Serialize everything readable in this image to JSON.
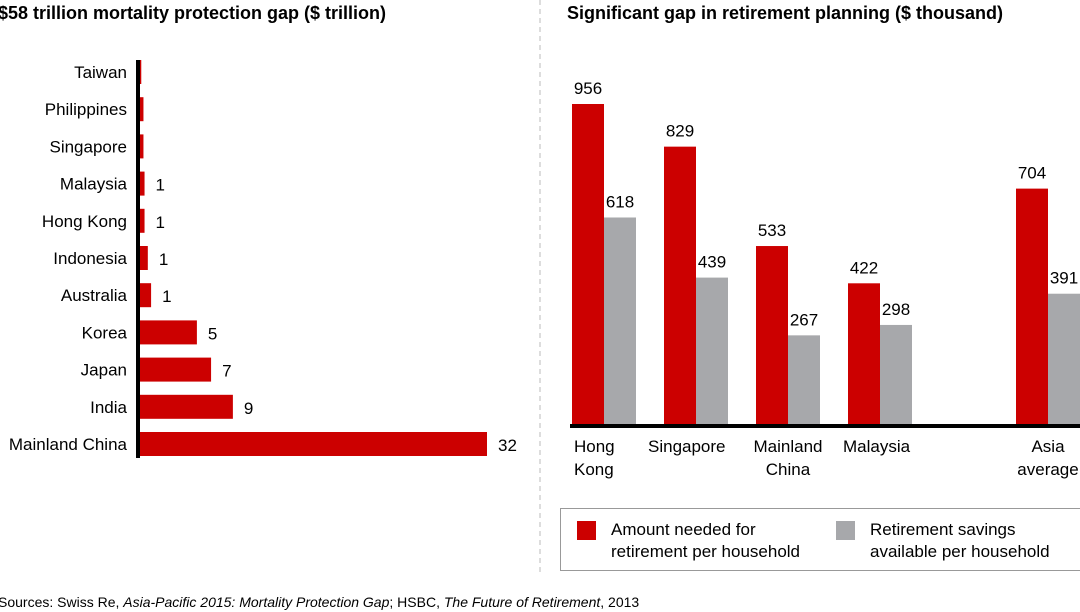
{
  "colors": {
    "red": "#cc0000",
    "gray": "#a7a8ab",
    "axis": "#000000"
  },
  "chart_data": [
    {
      "type": "bar",
      "orientation": "horizontal",
      "title": "$58 trillion mortality protection gap ($ trillion)",
      "categories": [
        "Taiwan",
        "Philippines",
        "Singapore",
        "Malaysia",
        "Hong Kong",
        "Indonesia",
        "Australia",
        "Korea",
        "Japan",
        "India",
        "Mainland China"
      ],
      "values": [
        0.3,
        0.5,
        0.5,
        0.6,
        0.6,
        0.9,
        1.2,
        5.4,
        6.7,
        8.7,
        32
      ],
      "data_labels": [
        "",
        "",
        "",
        "1",
        "1",
        "1",
        "1",
        "5",
        "7",
        "9",
        "32"
      ],
      "xlim": [
        0,
        32
      ]
    },
    {
      "type": "bar",
      "title": "Significant gap in retirement planning ($ thousand)",
      "categories": [
        "Hong Kong",
        "Singapore",
        "Mainland China",
        "Malaysia",
        "Asia average"
      ],
      "series": [
        {
          "name": "Amount needed for retirement per household",
          "values": [
            956,
            829,
            533,
            422,
            704
          ]
        },
        {
          "name": "Retirement savings available per household",
          "values": [
            618,
            439,
            267,
            298,
            391
          ]
        }
      ],
      "ylim": [
        0,
        956
      ],
      "legend": "bottom"
    }
  ],
  "legend": {
    "red_label_1": "Amount needed for",
    "red_label_2": "retirement per household",
    "gray_label_1": "Retirement savings",
    "gray_label_2": "available per household"
  },
  "sources": {
    "prefix": "Sources: Swiss Re, ",
    "title1": "Asia-Pacific 2015: Mortality Protection Gap",
    "mid": "; HSBC, ",
    "title2": "The Future of Retirement",
    "suffix": ", 2013"
  }
}
